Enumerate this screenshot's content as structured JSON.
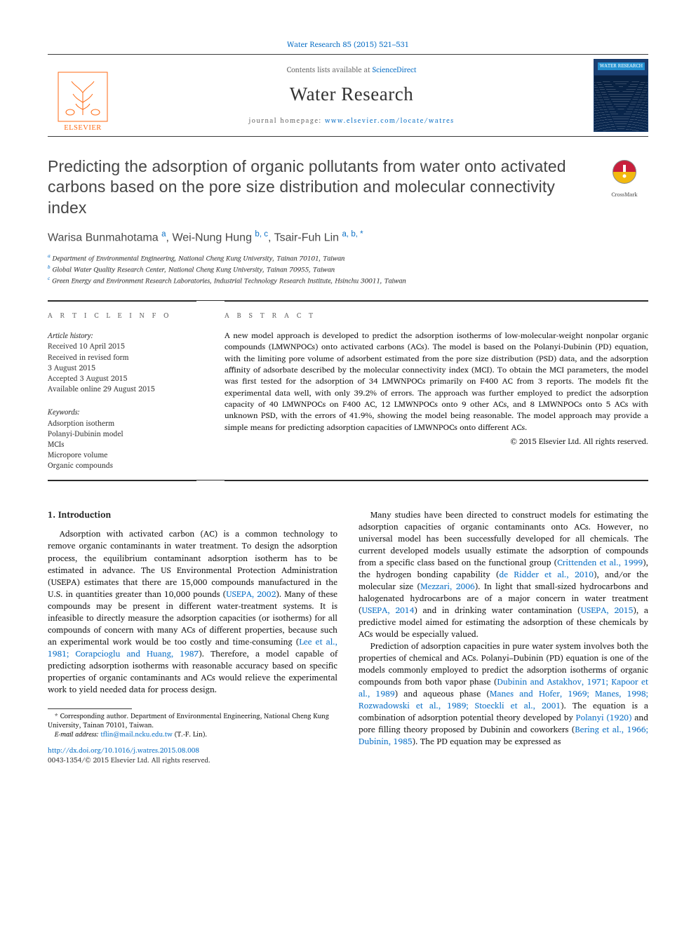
{
  "citation": {
    "text": "Water Research 85 (2015) 521–531",
    "url_label": "Water Research 85 (2015) 521–531"
  },
  "masthead": {
    "contents_prefix": "Contents lists available at ",
    "contents_link": "ScienceDirect",
    "journal_name": "Water Research",
    "homepage_prefix": "journal homepage: ",
    "homepage_link": "www.elsevier.com/locate/watres",
    "publisher_name": "ELSEVIER",
    "cover_badge": "WATER RESEARCH"
  },
  "crossmark": {
    "label": "CrossMark"
  },
  "article": {
    "title": "Predicting the adsorption of organic pollutants from water onto activated carbons based on the pore size distribution and molecular connectivity index",
    "authors_html": "Warisa Bunmahotama <sup>a</sup>, Wei-Nung Hung <sup>b, c</sup>, Tsair-Fuh Lin <sup>a, b, *</sup>",
    "affiliations": [
      {
        "sup": "a",
        "text": "Department of Environmental Engineering, National Cheng Kung University, Tainan 70101, Taiwan"
      },
      {
        "sup": "b",
        "text": "Global Water Quality Research Center, National Cheng Kung University, Tainan 70955, Taiwan"
      },
      {
        "sup": "c",
        "text": "Green Energy and Environment Research Laboratories, Industrial Technology Research Institute, Hsinchu 30011, Taiwan"
      }
    ]
  },
  "info": {
    "heading": "A R T I C L E   I N F O",
    "history_label": "Article history:",
    "history": [
      "Received 10 April 2015",
      "Received in revised form",
      "3 August 2015",
      "Accepted 3 August 2015",
      "Available online 29 August 2015"
    ],
    "keywords_label": "Keywords:",
    "keywords": [
      "Adsorption isotherm",
      "Polanyi-Dubinin model",
      "MCIs",
      "Micropore volume",
      "Organic compounds"
    ]
  },
  "abstract": {
    "heading": "A B S T R A C T",
    "text": "A new model approach is developed to predict the adsorption isotherms of low-molecular-weight nonpolar organic compounds (LMWNPOCs) onto activated carbons (ACs). The model is based on the Polanyi-Dubinin (PD) equation, with the limiting pore volume of adsorbent estimated from the pore size distribution (PSD) data, and the adsorption affinity of adsorbate described by the molecular connectivity index (MCI). To obtain the MCI parameters, the model was first tested for the adsorption of 34 LMWNPOCs primarily on F400 AC from 3 reports. The models fit the experimental data well, with only 39.2% of errors. The approach was further employed to predict the adsorption capacity of 40 LMWNPOCs on F400 AC, 12 LMWNPOCs onto 9 other ACs, and 8 LMWNPOCs onto 5 ACs with unknown PSD, with the errors of 41.9%, showing the model being reasonable. The model approach may provide a simple means for predicting adsorption capacities of LMWNPOCs onto different ACs.",
    "copyright": "© 2015 Elsevier Ltd. All rights reserved."
  },
  "body": {
    "section_number": "1.",
    "section_title": "Introduction",
    "p1a": "Adsorption with activated carbon (AC) is a common technology to remove organic contaminants in water treatment. To design the adsorption process, the equilibrium contaminant adsorption isotherm has to be estimated in advance. The US Environmental Protection Administration (USEPA) estimates that there are 15,000 compounds manufactured in the U.S. in quantities greater than 10,000 pounds (",
    "p1_link1": "USEPA, 2002",
    "p1b": "). Many of these compounds may be present in different water-treatment systems. It is infeasible to directly measure the adsorption capacities (or isotherms) for all compounds of concern with many ACs of different properties, because such an experimental work would be too costly and time-consuming (",
    "p1_link2": "Lee et al., 1981; Corapcioglu and Huang, 1987",
    "p1c": "). Therefore, a model capable of predicting adsorption isotherms with reasonable accuracy based on specific properties of organic contaminants and ACs would relieve the experimental work to yield needed data for process design.",
    "p2a": "Many studies have been directed to construct models for estimating the adsorption capacities of organic contaminants onto ACs. However, no universal model has been successfully developed for all chemicals. The current developed models usually estimate the adsorption of compounds from a specific class based on the functional group (",
    "p2_link1": "Crittenden et al., 1999",
    "p2b": "), the hydrogen bonding capability (",
    "p2_link2": "de Ridder et al., 2010",
    "p2c": "), and/or the molecular size (",
    "p2_link3": "Mezzari, 2006",
    "p2d": "). In light that small-sized hydrocarbons and halogenated hydrocarbons are of a major concern in water treatment (",
    "p2_link4": "USEPA, 2014",
    "p2e": ") and in drinking water contamination (",
    "p2_link5": "USEPA, 2015",
    "p2f": "), a predictive model aimed for estimating the adsorption of these chemicals by ACs would be especially valued.",
    "p3a": "Prediction of adsorption capacities in pure water system involves both the properties of chemical and ACs. Polanyi–Dubinin (PD) equation is one of the models commonly employed to predict the adsorption isotherms of organic compounds from both vapor phase (",
    "p3_link1": "Dubinin and Astakhov, 1971; Kapoor et al., 1989",
    "p3b": ") and aqueous phase (",
    "p3_link2": "Manes and Hofer, 1969; Manes, 1998; Rozwadowski et al., 1989; Stoeckli et al., 2001",
    "p3c": "). The equation is a combination of adsorption potential theory developed by ",
    "p3_link3": "Polanyi (1920)",
    "p3d": " and pore filling theory proposed by Dubinin and coworkers (",
    "p3_link4": "Bering et al., 1966; Dubinin, 1985",
    "p3e": "). The PD equation may be expressed as"
  },
  "footnotes": {
    "corr": "* Corresponding author. Department of Environmental Engineering, National Cheng Kung University, Tainan 70101, Taiwan.",
    "email_label": "E-mail address:",
    "email": "tflin@mail.ncku.edu.tw",
    "email_tail": "(T.-F. Lin)."
  },
  "footer": {
    "doi": "http://dx.doi.org/10.1016/j.watres.2015.08.008",
    "issn_line": "0043-1354/© 2015 Elsevier Ltd. All rights reserved."
  },
  "colors": {
    "link": "#1173c7",
    "elsevier_orange": "#ff6a13",
    "rule": "#2a2a2a",
    "text": "#1a1a1a",
    "muted": "#6b6b6b"
  }
}
